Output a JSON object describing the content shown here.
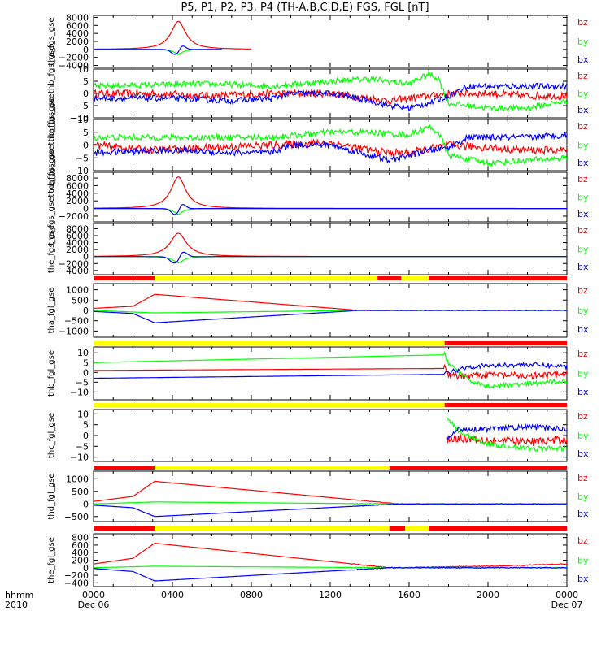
{
  "title": "P5, P1, P2, P3, P4 (TH-A,B,C,D,E) FGS, FGL [nT]",
  "colors": {
    "bx": "#0000ff",
    "by": "#00ff00",
    "bz": "#ff0000",
    "mode_a": "#ffff00",
    "mode_b": "#ff0000",
    "mode_c": "#000000"
  },
  "legend_labels": [
    "bz",
    "by",
    "bx"
  ],
  "x_axis": {
    "row_label": "hhmm",
    "year_label": "2010",
    "ticks": [
      "0000",
      "0400",
      "0800",
      "1200",
      "1600",
      "2000",
      "0000"
    ],
    "tick_hours": [
      0,
      4,
      8,
      12,
      16,
      20,
      24
    ],
    "date_start": "Dec 06",
    "date_end": "Dec 07"
  },
  "chart_data": [
    {
      "type": "line",
      "ylabel": "tha_fgs_gse",
      "ylim": [
        -4500,
        8500
      ],
      "yticks": [
        "8000",
        "6000",
        "4000",
        "2000",
        "0",
        "−2000",
        "−4000"
      ],
      "ytick_values": [
        8000,
        6000,
        4000,
        2000,
        0,
        -2000,
        -4000
      ],
      "mode_bar": null,
      "series": [
        {
          "name": "bz",
          "kind": "spike",
          "t0": 4.3,
          "peak": 7000,
          "base": 0,
          "w": 0.45,
          "until": 8.0
        },
        {
          "name": "by",
          "kind": "spike",
          "t0": 4.3,
          "peak": -1200,
          "base": 0,
          "w": 0.25,
          "until": 6.5
        },
        {
          "name": "bx",
          "kind": "bipolar",
          "t0": 4.3,
          "peak": -2000,
          "base": 0,
          "w": 0.3,
          "until": 6.5
        }
      ]
    },
    {
      "type": "line",
      "ylabel": "tha_fgs_gsethb_fgs_gse",
      "ylim": [
        -10,
        10
      ],
      "yticks": [
        "10",
        "5",
        "0",
        "−5",
        "−10"
      ],
      "ytick_values": [
        10,
        5,
        0,
        -5,
        -10
      ],
      "mode_bar": null,
      "series": [
        {
          "name": "bz",
          "kind": "noisy",
          "pts": [
            [
              0,
              0
            ],
            [
              3,
              0
            ],
            [
              6,
              -1
            ],
            [
              9,
              0
            ],
            [
              12,
              0
            ],
            [
              13,
              -1
            ],
            [
              15,
              -3
            ],
            [
              16,
              -2
            ],
            [
              18,
              0
            ],
            [
              20,
              0
            ],
            [
              22,
              -1
            ],
            [
              24,
              -1
            ]
          ],
          "noise": 1.5
        },
        {
          "name": "by",
          "kind": "noisy",
          "pts": [
            [
              0,
              3
            ],
            [
              6,
              4
            ],
            [
              9,
              3
            ],
            [
              12,
              5
            ],
            [
              14,
              6
            ],
            [
              16,
              4
            ],
            [
              17,
              8
            ],
            [
              17.5,
              6
            ],
            [
              18,
              -4
            ],
            [
              20,
              -6
            ],
            [
              22,
              -6
            ],
            [
              24,
              -3
            ]
          ],
          "noise": 1.2
        },
        {
          "name": "bx",
          "kind": "noisy",
          "pts": [
            [
              0,
              -2
            ],
            [
              4,
              -2
            ],
            [
              7,
              -3
            ],
            [
              9,
              -2
            ],
            [
              10,
              0
            ],
            [
              12,
              0
            ],
            [
              14,
              -3
            ],
            [
              15,
              -5
            ],
            [
              16,
              -6
            ],
            [
              17,
              -4
            ],
            [
              18,
              -1
            ],
            [
              19,
              3
            ],
            [
              22,
              3
            ],
            [
              24,
              3
            ]
          ],
          "noise": 1.2
        }
      ]
    },
    {
      "type": "line",
      "ylabel": "tha_fgs_gsethb_fgs_gse",
      "ylim": [
        -10,
        10
      ],
      "yticks": [
        "10",
        "5",
        "0",
        "−5",
        "−10"
      ],
      "ytick_values": [
        10,
        5,
        0,
        -5,
        -10
      ],
      "mode_bar": null,
      "series": [
        {
          "name": "bz",
          "kind": "noisy",
          "pts": [
            [
              0,
              0
            ],
            [
              3,
              -2
            ],
            [
              6,
              -1
            ],
            [
              9,
              0
            ],
            [
              12,
              1
            ],
            [
              14,
              -2
            ],
            [
              15,
              -3
            ],
            [
              16,
              -3
            ],
            [
              18,
              0
            ],
            [
              20,
              -1
            ],
            [
              22,
              -2
            ],
            [
              24,
              -2
            ]
          ],
          "noise": 1.5
        },
        {
          "name": "by",
          "kind": "noisy",
          "pts": [
            [
              0,
              3
            ],
            [
              6,
              3
            ],
            [
              9,
              3
            ],
            [
              12,
              5
            ],
            [
              14,
              5
            ],
            [
              16,
              4
            ],
            [
              17,
              7
            ],
            [
              17.5,
              5
            ],
            [
              18,
              -4
            ],
            [
              20,
              -7
            ],
            [
              22,
              -6
            ],
            [
              24,
              -5
            ]
          ],
          "noise": 1.2
        },
        {
          "name": "bx",
          "kind": "noisy",
          "pts": [
            [
              0,
              -3
            ],
            [
              4,
              -2
            ],
            [
              7,
              -3
            ],
            [
              9,
              -3
            ],
            [
              10,
              0
            ],
            [
              12,
              0
            ],
            [
              14,
              -4
            ],
            [
              15,
              -6
            ],
            [
              16,
              -4
            ],
            [
              17,
              -2
            ],
            [
              18,
              -1
            ],
            [
              19,
              3
            ],
            [
              22,
              3
            ],
            [
              24,
              4
            ]
          ],
          "noise": 1.2
        }
      ]
    },
    {
      "type": "line",
      "ylabel": "tha_fgs_gsethd_fgs_gse",
      "ylim": [
        -3500,
        9500
      ],
      "yticks": [
        "8000",
        "6000",
        "4000",
        "2000",
        "0",
        "−2000"
      ],
      "ytick_values": [
        8000,
        6000,
        4000,
        2000,
        0,
        -2000
      ],
      "mode_bar": null,
      "series": [
        {
          "name": "bz",
          "kind": "spike",
          "t0": 4.3,
          "peak": 8300,
          "base": 0,
          "w": 0.45,
          "until": 24
        },
        {
          "name": "by",
          "kind": "spike",
          "t0": 4.3,
          "peak": -1500,
          "base": 0,
          "w": 0.25,
          "until": 24
        },
        {
          "name": "bx",
          "kind": "bipolar",
          "t0": 4.3,
          "peak": -2500,
          "base": 0,
          "w": 0.3,
          "until": 24
        }
      ]
    },
    {
      "type": "line",
      "ylabel": "the_fgs_gse",
      "ylim": [
        -5200,
        9500
      ],
      "yticks": [
        "8000",
        "6000",
        "4000",
        "2000",
        "0",
        "−2000",
        "−4000"
      ],
      "ytick_values": [
        8000,
        6000,
        4000,
        2000,
        0,
        -2000,
        -4000
      ],
      "mode_bar": [
        [
          "r",
          0,
          3.1
        ],
        [
          "y",
          3.1,
          14.4
        ],
        [
          "r",
          14.4,
          15.6
        ],
        [
          "y",
          15.6,
          17.0
        ],
        [
          "r",
          17.0,
          24
        ]
      ],
      "series": [
        {
          "name": "bz",
          "kind": "spike",
          "t0": 4.3,
          "peak": 6700,
          "base": 0,
          "w": 0.5,
          "until": 24
        },
        {
          "name": "by",
          "kind": "spike",
          "t0": 4.3,
          "peak": -1800,
          "base": 0,
          "w": 0.3,
          "until": 24
        },
        {
          "name": "bx",
          "kind": "bipolar",
          "t0": 4.3,
          "peak": -3000,
          "base": 0,
          "w": 0.35,
          "until": 24
        }
      ]
    },
    {
      "type": "line",
      "ylabel": "tha_fgl_gse",
      "ylim": [
        -1300,
        1300
      ],
      "yticks": [
        "1000",
        "500",
        "0",
        "−500",
        "−1000"
      ],
      "ytick_values": [
        1000,
        500,
        0,
        -500,
        -1000
      ],
      "mode_bar": [
        [
          "y",
          0,
          17.8
        ],
        [
          "r",
          17.8,
          24
        ]
      ],
      "series": [
        {
          "name": "bz",
          "kind": "ramp",
          "pts": [
            [
              0,
              100
            ],
            [
              2,
              200
            ],
            [
              3.1,
              780
            ],
            [
              13.5,
              0
            ],
            [
              24,
              0
            ]
          ]
        },
        {
          "name": "by",
          "kind": "ramp",
          "pts": [
            [
              0,
              0
            ],
            [
              3.1,
              -120
            ],
            [
              13.5,
              0
            ],
            [
              24,
              0
            ]
          ]
        },
        {
          "name": "bx",
          "kind": "ramp",
          "pts": [
            [
              0,
              -50
            ],
            [
              2,
              -150
            ],
            [
              3.1,
              -600
            ],
            [
              13.5,
              0
            ],
            [
              24,
              0
            ]
          ]
        }
      ]
    },
    {
      "type": "line",
      "ylabel": "thb_fgl_gse",
      "ylim": [
        -14,
        13
      ],
      "yticks": [
        "10",
        "5",
        "0",
        "−5",
        "−10"
      ],
      "ytick_values": [
        10,
        5,
        0,
        -5,
        -10
      ],
      "mode_bar": [
        [
          "y",
          0,
          17.8
        ],
        [
          "r",
          17.8,
          24
        ]
      ],
      "series": [
        {
          "name": "bz",
          "kind": "mixed",
          "pts": [
            [
              0,
              1
            ],
            [
              17.8,
              2
            ],
            [
              18,
              -2
            ],
            [
              20,
              -1
            ],
            [
              22,
              -2
            ],
            [
              24,
              -1
            ]
          ],
          "noise_from": 17.8,
          "noise": 1.8
        },
        {
          "name": "by",
          "kind": "mixed",
          "pts": [
            [
              0,
              5
            ],
            [
              17.8,
              9
            ],
            [
              18,
              5
            ],
            [
              19,
              -4
            ],
            [
              20,
              -7
            ],
            [
              22,
              -6
            ],
            [
              24,
              -4
            ]
          ],
          "noise_from": 17.8,
          "noise": 1.2
        },
        {
          "name": "bx",
          "kind": "mixed",
          "pts": [
            [
              0,
              -3
            ],
            [
              17.8,
              -1
            ],
            [
              18,
              0
            ],
            [
              19,
              3
            ],
            [
              22,
              4
            ],
            [
              24,
              3
            ]
          ],
          "noise_from": 17.8,
          "noise": 1.2
        }
      ]
    },
    {
      "type": "line",
      "ylabel": "thc_fgl_gse",
      "ylim": [
        -12,
        12
      ],
      "yticks": [
        "10",
        "5",
        "0",
        "−5",
        "−10"
      ],
      "ytick_values": [
        10,
        5,
        0,
        -5,
        -10
      ],
      "mode_bar": [
        [
          "r",
          0,
          3.1
        ],
        [
          "y",
          3.1,
          15.0
        ],
        [
          "r",
          15.0,
          24
        ]
      ],
      "series": [
        {
          "name": "bz",
          "kind": "mixed",
          "pts": [
            [
              17.9,
              -2
            ],
            [
              18.5,
              -1
            ],
            [
              20,
              -2
            ],
            [
              22,
              -3
            ],
            [
              24,
              -2
            ]
          ],
          "noise_from": 17.9,
          "noise": 2.0
        },
        {
          "name": "by",
          "kind": "mixed",
          "pts": [
            [
              17.9,
              9
            ],
            [
              18.5,
              2
            ],
            [
              20,
              -4
            ],
            [
              22,
              -6
            ],
            [
              24,
              -6
            ]
          ],
          "noise_from": 17.9,
          "noise": 1.2
        },
        {
          "name": "bx",
          "kind": "mixed",
          "pts": [
            [
              17.9,
              -2
            ],
            [
              18.5,
              3
            ],
            [
              20,
              3
            ],
            [
              22,
              4
            ],
            [
              24,
              3
            ]
          ],
          "noise_from": 17.9,
          "noise": 1.2
        }
      ]
    },
    {
      "type": "line",
      "ylabel": "thd_fgl_gse",
      "ylim": [
        -700,
        1300
      ],
      "yticks": [
        "1000",
        "500",
        "0",
        "−500"
      ],
      "ytick_values": [
        1000,
        500,
        0,
        -500
      ],
      "mode_bar": [
        [
          "r",
          0,
          3.1
        ],
        [
          "y",
          3.1,
          15.0
        ],
        [
          "r",
          15.0,
          15.8
        ],
        [
          "y",
          15.8,
          17.0
        ],
        [
          "r",
          17.0,
          24
        ]
      ],
      "series": [
        {
          "name": "bz",
          "kind": "ramp",
          "pts": [
            [
              0,
              100
            ],
            [
              2,
              300
            ],
            [
              3.1,
              900
            ],
            [
              15.5,
              0
            ],
            [
              24,
              0
            ]
          ]
        },
        {
          "name": "by",
          "kind": "ramp",
          "pts": [
            [
              0,
              0
            ],
            [
              3.1,
              80
            ],
            [
              15.5,
              0
            ],
            [
              24,
              0
            ]
          ]
        },
        {
          "name": "bx",
          "kind": "ramp",
          "pts": [
            [
              0,
              -50
            ],
            [
              2,
              -150
            ],
            [
              3.1,
              -500
            ],
            [
              15.5,
              0
            ],
            [
              24,
              0
            ]
          ]
        }
      ]
    },
    {
      "type": "line",
      "ylabel": "the_fgl_gse",
      "ylim": [
        -500,
        900
      ],
      "yticks": [
        "800",
        "600",
        "400",
        "200",
        "0",
        "−200",
        "−400"
      ],
      "ytick_values": [
        800,
        600,
        400,
        200,
        0,
        -200,
        -400
      ],
      "mode_bar": null,
      "series": [
        {
          "name": "bz",
          "kind": "ramp",
          "pts": [
            [
              0,
              100
            ],
            [
              2,
              250
            ],
            [
              3.1,
              650
            ],
            [
              15.0,
              0
            ],
            [
              20,
              40
            ],
            [
              24,
              100
            ]
          ]
        },
        {
          "name": "by",
          "kind": "ramp",
          "pts": [
            [
              0,
              0
            ],
            [
              3.1,
              40
            ],
            [
              15.0,
              0
            ],
            [
              24,
              0
            ]
          ]
        },
        {
          "name": "bx",
          "kind": "ramp",
          "pts": [
            [
              0,
              -20
            ],
            [
              2,
              -100
            ],
            [
              3.1,
              -350
            ],
            [
              15.0,
              0
            ],
            [
              24,
              0
            ]
          ]
        }
      ]
    }
  ]
}
